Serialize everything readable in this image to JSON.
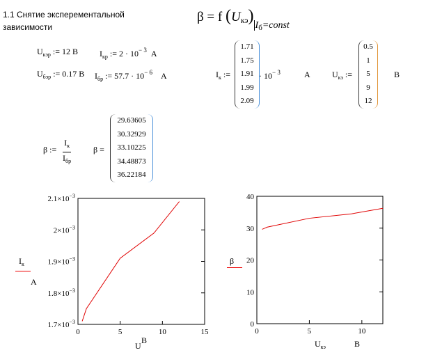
{
  "heading": {
    "line1": "1.1 Снятие эксперементальной",
    "line2": "зависимости"
  },
  "formula": {
    "lhs": "β = f",
    "arg": "U",
    "arg_sub": "кэ",
    "cond": "I",
    "cond_sub": "б",
    "cond_rest": "=const"
  },
  "defs": {
    "ukep": {
      "name": "U",
      "sub": "кэр",
      "rest": ":= 12  В"
    },
    "ikp": {
      "name": "I",
      "sub": "кр",
      "rest": ":= 2 · 10",
      "exp": "− 3",
      "unit": "А"
    },
    "ubep": {
      "name": "U",
      "sub": "бэр",
      "rest": ":= 0.17  В"
    },
    "ibp": {
      "name": "I",
      "sub": "бр",
      "rest": ":= 57.7 · 10",
      "exp": "− 6",
      "unit": "А"
    },
    "ik": {
      "name": "I",
      "sub": "к",
      "assign": ":=",
      "values": [
        "1.71",
        "1.75",
        "1.91",
        "1.99",
        "2.09"
      ],
      "mult": "· 10",
      "exp": "− 3",
      "unit": "А"
    },
    "uke": {
      "name": "U",
      "sub": "кэ",
      "assign": ":=",
      "values": [
        "0.5",
        "1",
        "5",
        "9",
        "12"
      ],
      "unit": "В"
    },
    "beta_def": {
      "lhs": "β :=",
      "num": "I",
      "num_sub": "к",
      "den": "I",
      "den_sub": "бр"
    },
    "beta_res": {
      "lhs": "β =",
      "values": [
        "29.63605",
        "30.32929",
        "33.10225",
        "34.48873",
        "36.22184"
      ]
    }
  },
  "chart_data": [
    {
      "type": "line",
      "x": [
        0.5,
        1,
        5,
        9,
        12
      ],
      "y": [
        0.00171,
        0.00175,
        0.00191,
        0.00199,
        0.00209
      ],
      "xlim": [
        0,
        15
      ],
      "ylim": [
        0.0017,
        0.0021
      ],
      "xticks": [
        "0",
        "5",
        "10",
        "15"
      ],
      "yticks": [
        {
          "m": "1.7",
          "e": "−3"
        },
        {
          "m": "1.8",
          "e": "−3"
        },
        {
          "m": "1.9",
          "e": "−3"
        },
        {
          "m": "2",
          "e": "−3"
        },
        {
          "m": "2.1",
          "e": "−3"
        }
      ],
      "ylabel": {
        "name": "I",
        "sub": "к",
        "unit": "А"
      },
      "xlabel": {
        "name": "U",
        "unit": "В"
      },
      "color": "#e00000"
    },
    {
      "type": "line",
      "x": [
        0.5,
        1,
        5,
        9,
        12
      ],
      "y": [
        29.63605,
        30.32929,
        33.10225,
        34.48873,
        36.22184
      ],
      "xlim": [
        0,
        12
      ],
      "ylim": [
        0,
        40
      ],
      "xticks": [
        "0",
        "5",
        "10"
      ],
      "yticks": [
        "0",
        "10",
        "20",
        "30",
        "40"
      ],
      "ylabel": {
        "name": "β"
      },
      "xlabel": {
        "name": "U",
        "sub": "кэ",
        "unit": "В"
      },
      "color": "#e00000"
    }
  ]
}
